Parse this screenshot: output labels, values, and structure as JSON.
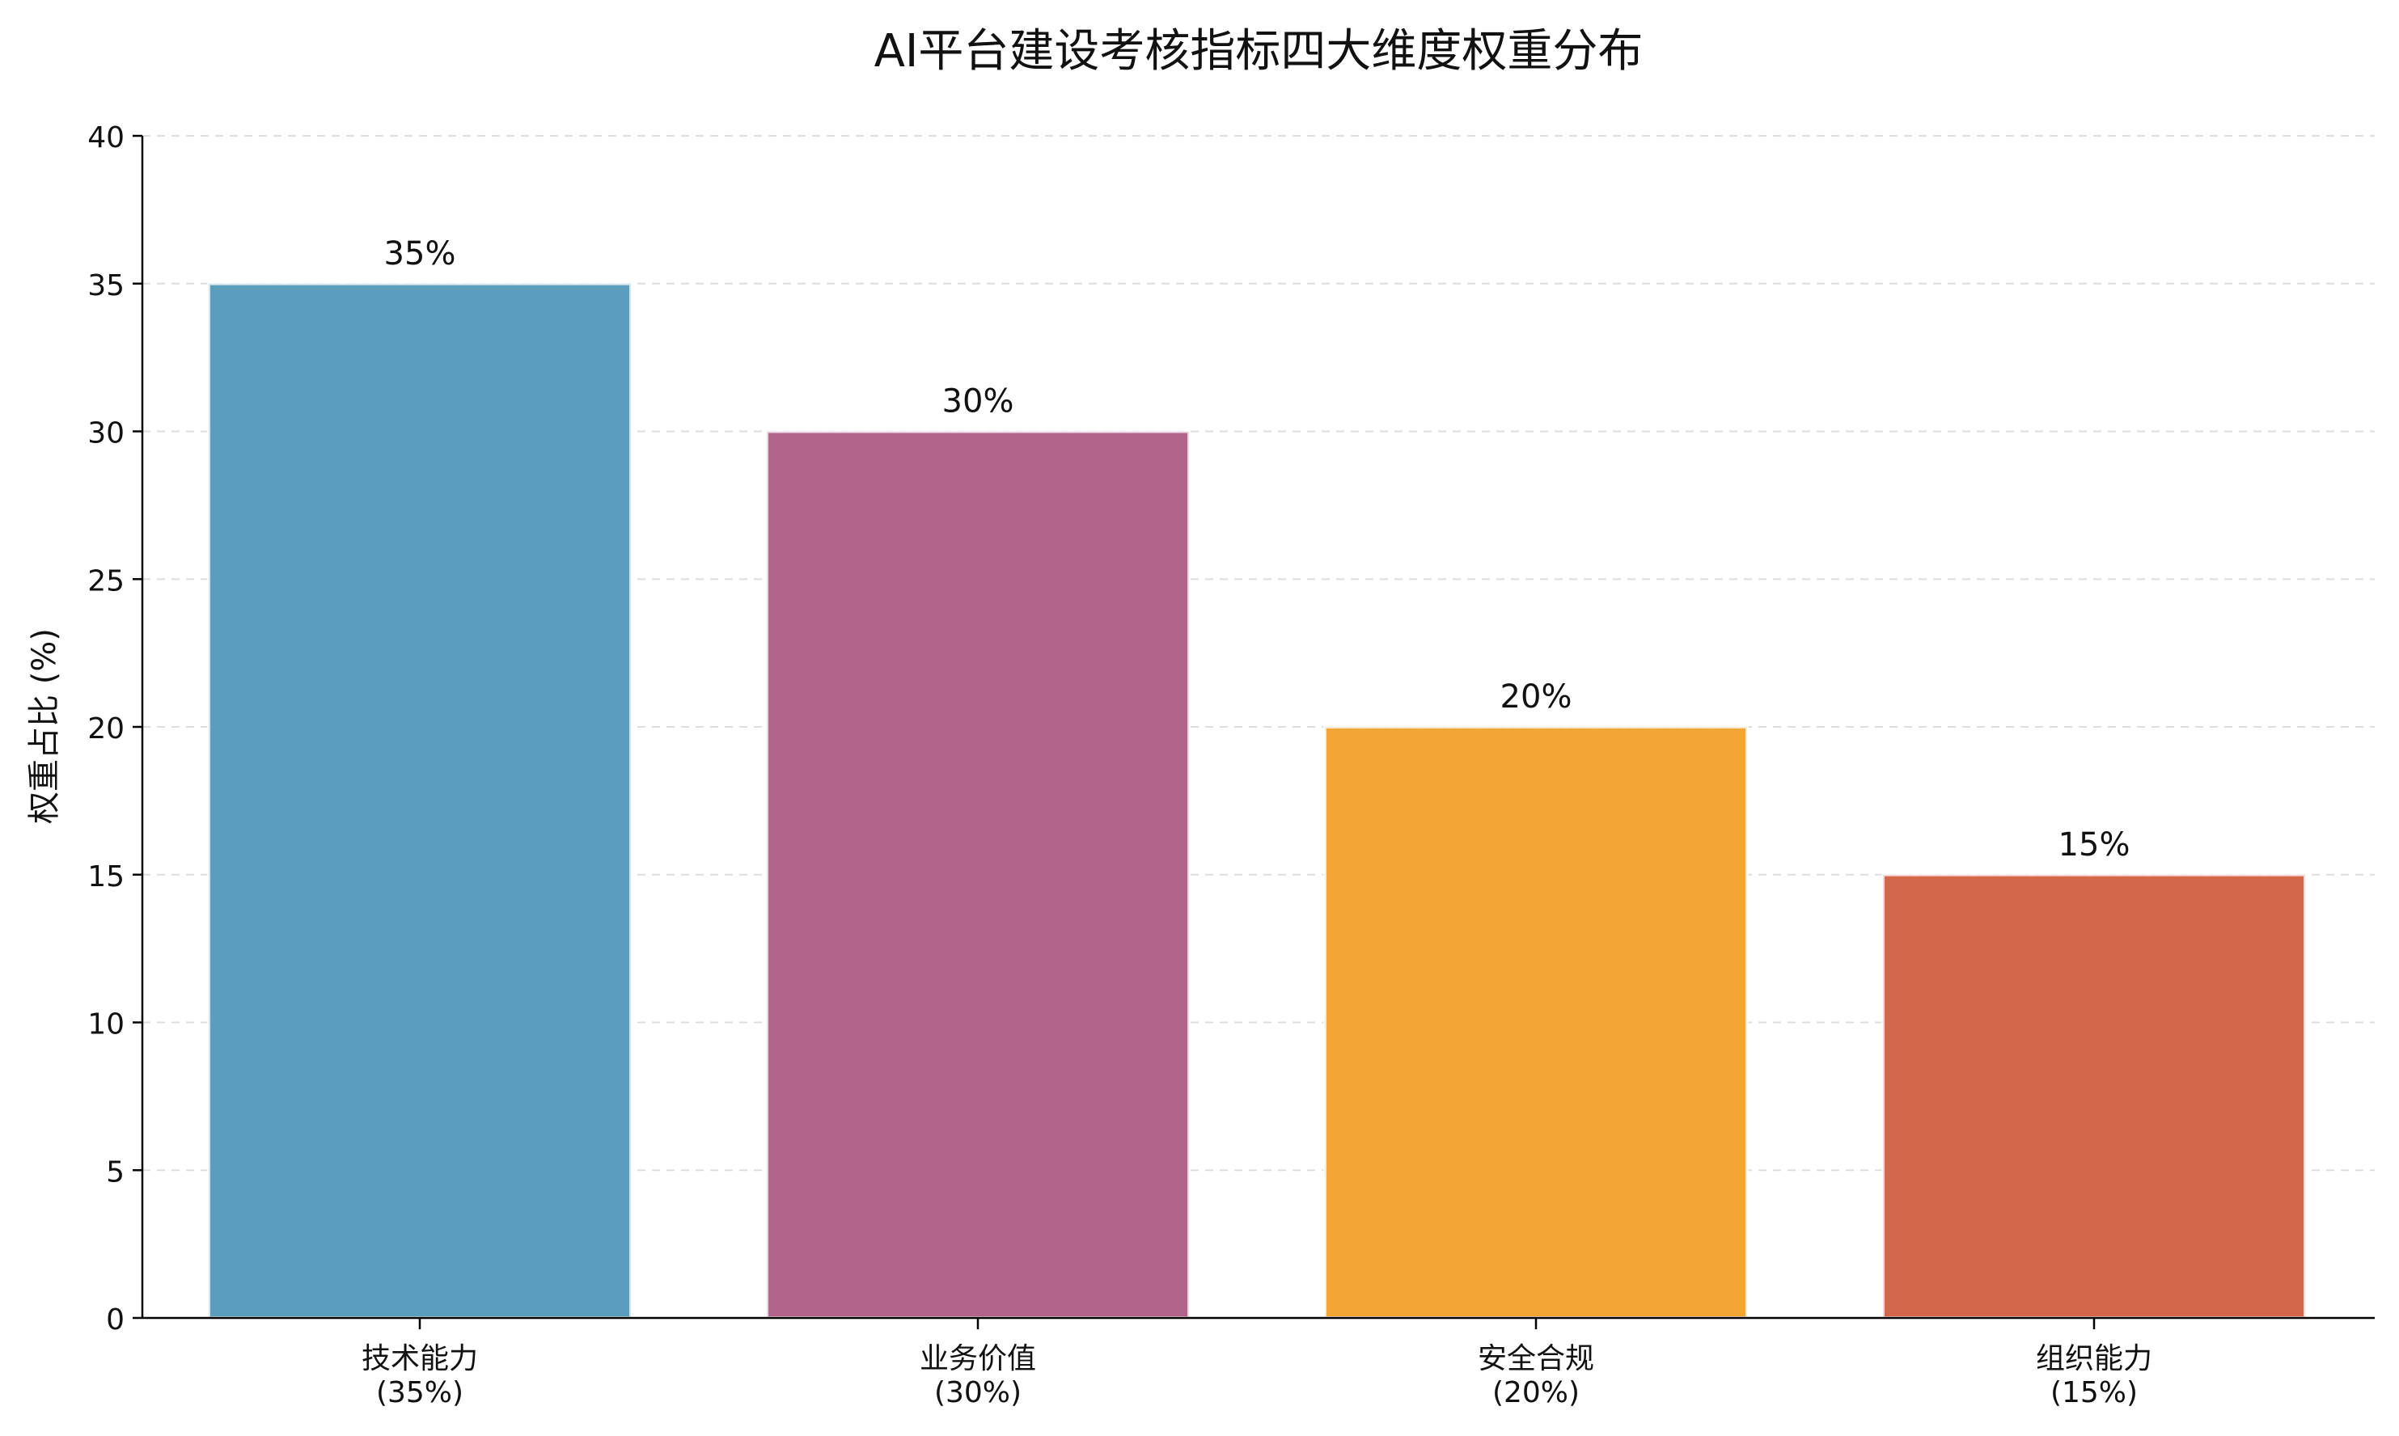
{
  "chart_data": {
    "type": "bar",
    "title": "AI平台建设考核指标四大维度权重分布",
    "xlabel": "",
    "ylabel": "权重占比 (%)",
    "categories": [
      "技术能力\n(35%)",
      "业务价值\n(30%)",
      "安全合规\n(20%)",
      "组织能力\n(15%)"
    ],
    "values": [
      35,
      30,
      20,
      15
    ],
    "data_labels": [
      "35%",
      "30%",
      "20%",
      "15%"
    ],
    "colors": [
      "#5a9dbd",
      "#b3648b",
      "#f2a535",
      "#d4674b"
    ],
    "ylim": [
      0,
      40
    ],
    "yticks": [
      0,
      5,
      10,
      15,
      20,
      25,
      30,
      35,
      40
    ],
    "grid": "y dashed"
  }
}
